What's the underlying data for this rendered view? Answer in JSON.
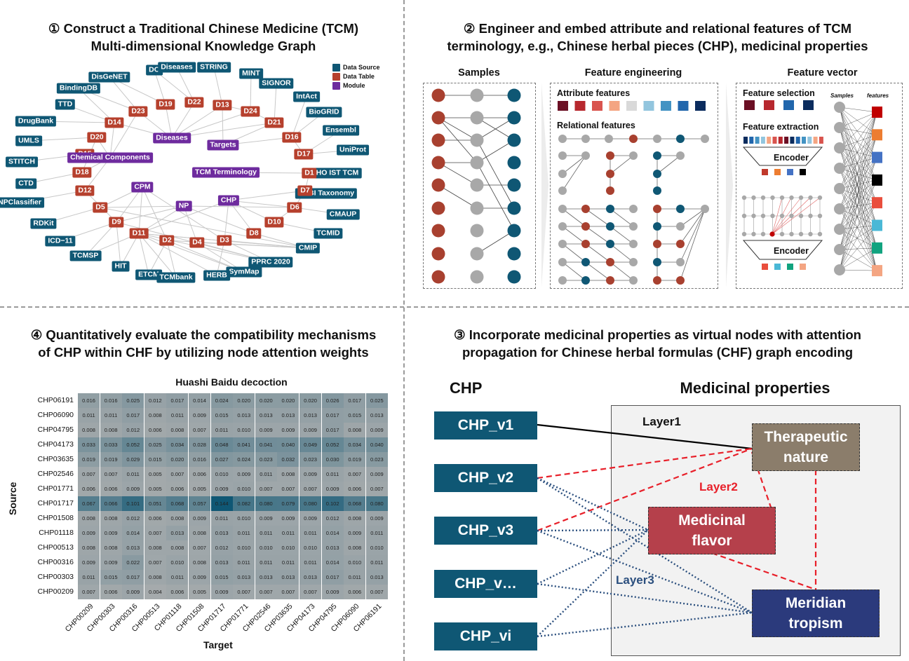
{
  "panel1": {
    "title_line1": "① Construct a Traditional Chinese Medicine (TCM)",
    "title_line2": "Multi-dimensional Knowledge Graph",
    "legend": [
      {
        "label": "Data Source",
        "color": "#0f5774"
      },
      {
        "label": "Data Table",
        "color": "#b6402d"
      },
      {
        "label": "Module",
        "color": "#6e2b9e"
      }
    ],
    "nodes": [
      {
        "id": "DO",
        "label": "DO",
        "type": "src"
      },
      {
        "id": "Diseases1",
        "label": "Diseases",
        "type": "src"
      },
      {
        "id": "STRING",
        "label": "STRING",
        "type": "src"
      },
      {
        "id": "DisGeNET",
        "label": "DisGeNET",
        "type": "src"
      },
      {
        "id": "MINT",
        "label": "MINT",
        "type": "src"
      },
      {
        "id": "SIGNOR",
        "label": "SIGNOR",
        "type": "src"
      },
      {
        "id": "BindingDB",
        "label": "BindingDB",
        "type": "src"
      },
      {
        "id": "IntAct",
        "label": "IntAct",
        "type": "src"
      },
      {
        "id": "TTD",
        "label": "TTD",
        "type": "src"
      },
      {
        "id": "BioGRID",
        "label": "BioGRID",
        "type": "src"
      },
      {
        "id": "DrugBank",
        "label": "DrugBank",
        "type": "src"
      },
      {
        "id": "Ensembl",
        "label": "Ensembl",
        "type": "src"
      },
      {
        "id": "UMLS",
        "label": "UMLS",
        "type": "src"
      },
      {
        "id": "UniProt",
        "label": "UniProt",
        "type": "src"
      },
      {
        "id": "STITCH",
        "label": "STITCH",
        "type": "src"
      },
      {
        "id": "WHO",
        "label": "WHO IST TCM",
        "type": "src"
      },
      {
        "id": "CTD",
        "label": "CTD",
        "type": "src"
      },
      {
        "id": "NCBI",
        "label": "NCBI Taxonomy",
        "type": "src"
      },
      {
        "id": "NPClassifier",
        "label": "NPClassifier",
        "type": "src"
      },
      {
        "id": "CMAUP",
        "label": "CMAUP",
        "type": "src"
      },
      {
        "id": "RDKit",
        "label": "RDKit",
        "type": "src"
      },
      {
        "id": "TCMID",
        "label": "TCMID",
        "type": "src"
      },
      {
        "id": "ICD11",
        "label": "ICD−11",
        "type": "src"
      },
      {
        "id": "CMIP",
        "label": "CMIP",
        "type": "src"
      },
      {
        "id": "TCMSP",
        "label": "TCMSP",
        "type": "src"
      },
      {
        "id": "PPRC",
        "label": "PPRC 2020",
        "type": "src"
      },
      {
        "id": "HIT",
        "label": "HIT",
        "type": "src"
      },
      {
        "id": "SymMap",
        "label": "SymMap",
        "type": "src"
      },
      {
        "id": "ETCM",
        "label": "ETCM",
        "type": "src"
      },
      {
        "id": "TCMbank",
        "label": "TCMbank",
        "type": "src"
      },
      {
        "id": "HERB",
        "label": "HERB",
        "type": "src"
      },
      {
        "id": "D23",
        "label": "D23",
        "type": "tbl"
      },
      {
        "id": "D19",
        "label": "D19",
        "type": "tbl"
      },
      {
        "id": "D22",
        "label": "D22",
        "type": "tbl"
      },
      {
        "id": "D13",
        "label": "D13",
        "type": "tbl"
      },
      {
        "id": "D24",
        "label": "D24",
        "type": "tbl"
      },
      {
        "id": "D14",
        "label": "D14",
        "type": "tbl"
      },
      {
        "id": "D21",
        "label": "D21",
        "type": "tbl"
      },
      {
        "id": "D20",
        "label": "D20",
        "type": "tbl"
      },
      {
        "id": "D16",
        "label": "D16",
        "type": "tbl"
      },
      {
        "id": "D15",
        "label": "D15",
        "type": "tbl"
      },
      {
        "id": "D17",
        "label": "D17",
        "type": "tbl"
      },
      {
        "id": "D18",
        "label": "D18",
        "type": "tbl"
      },
      {
        "id": "D1",
        "label": "D1",
        "type": "tbl"
      },
      {
        "id": "D12",
        "label": "D12",
        "type": "tbl"
      },
      {
        "id": "D7",
        "label": "D7",
        "type": "tbl"
      },
      {
        "id": "D5",
        "label": "D5",
        "type": "tbl"
      },
      {
        "id": "D6",
        "label": "D6",
        "type": "tbl"
      },
      {
        "id": "D9",
        "label": "D9",
        "type": "tbl"
      },
      {
        "id": "D10",
        "label": "D10",
        "type": "tbl"
      },
      {
        "id": "D11",
        "label": "D11",
        "type": "tbl"
      },
      {
        "id": "D2",
        "label": "D2",
        "type": "tbl"
      },
      {
        "id": "D4",
        "label": "D4",
        "type": "tbl"
      },
      {
        "id": "D3",
        "label": "D3",
        "type": "tbl"
      },
      {
        "id": "D8",
        "label": "D8",
        "type": "tbl"
      },
      {
        "id": "Diseases2",
        "label": "Diseases",
        "type": "mod"
      },
      {
        "id": "Targets",
        "label": "Targets",
        "type": "mod"
      },
      {
        "id": "Chem",
        "label": "Chemical Components",
        "type": "mod"
      },
      {
        "id": "TCMTerm",
        "label": "TCM Terminology",
        "type": "mod"
      },
      {
        "id": "CPM",
        "label": "CPM",
        "type": "mod"
      },
      {
        "id": "NP",
        "label": "NP",
        "type": "mod"
      },
      {
        "id": "CHP",
        "label": "CHP",
        "type": "mod"
      }
    ]
  },
  "panel2": {
    "title_line1": "② Engineer and embed attribute and relational features of TCM",
    "title_line2": "terminology, e.g., Chinese herbal pieces (CHP), medicinal properties",
    "samples_title": "Samples",
    "fe_title": "Feature engineering",
    "fv_title": "Feature vector",
    "attr_label": "Attribute features",
    "rel_label": "Relational features",
    "sel_label": "Feature selection",
    "ext_label": "Feature extraction",
    "encoder1": "Encoder",
    "encoder2": "Encoder",
    "fv_samples": "Samples",
    "fv_features": "features",
    "attr_colors": [
      "#6b0f24",
      "#b7282e",
      "#d9544e",
      "#f4a582",
      "#d9d9d9",
      "#92c5de",
      "#4393c3",
      "#2166ac",
      "#0b2c5e"
    ],
    "sel_colors": [
      "#6b0f24",
      "#b7282e",
      "#2166ac",
      "#0b2c5e"
    ],
    "feature_colors": [
      "#c00000",
      "#ed7d31",
      "#4472c4",
      "#000000",
      "#e94e3c",
      "#4ab8d6",
      "#11a37f",
      "#f4a582"
    ]
  },
  "panel3": {
    "title_line1": "③ Incorporate medicinal properties as virtual nodes with attention",
    "title_line2": "propagation for Chinese herbal formulas (CHF) graph encoding",
    "chp_header": "CHP",
    "mp_header": "Medicinal properties",
    "chp_nodes": [
      "CHP_v1",
      "CHP_v2",
      "CHP_v3",
      "CHP_v…",
      "CHP_vi"
    ],
    "props": {
      "therapeutic": {
        "line1": "Therapeutic",
        "line2": "nature",
        "color": "#8b7d6b"
      },
      "flavor": {
        "line1": "Medicinal",
        "line2": "flavor",
        "color": "#b5404b"
      },
      "meridian": {
        "line1": "Meridian",
        "line2": "tropism",
        "color": "#2b3a7c"
      }
    },
    "layer1": "Layer1",
    "layer2": "Layer2",
    "layer3": "Layer3",
    "layer2_color": "#e8202a",
    "layer3_color": "#2b4f7e"
  },
  "panel4": {
    "title_line1": "④ Quantitatively evaluate the compatibility mechanisms",
    "title_line2": "of CHP within CHF by utilizing node attention weights",
    "chart_data": {
      "type": "heatmap",
      "title": "Huashi Baidu decoction",
      "xlabel": "Target",
      "ylabel": "Source",
      "rows": [
        "CHP06191",
        "CHP06090",
        "CHP04795",
        "CHP04173",
        "CHP03635",
        "CHP02546",
        "CHP01771",
        "CHP01717",
        "CHP01508",
        "CHP01118",
        "CHP00513",
        "CHP00316",
        "CHP00303",
        "CHP00209"
      ],
      "cols": [
        "CHP00209",
        "CHP00303",
        "CHP00316",
        "CHP00513",
        "CHP01118",
        "CHP01508",
        "CHP01717",
        "CHP01771",
        "CHP02546",
        "CHP03635",
        "CHP04173",
        "CHP04795",
        "CHP06090",
        "CHP06191"
      ],
      "values": [
        [
          "0.016",
          "0.016",
          "0.025",
          "0.012",
          "0.017",
          "0.014",
          "0.024",
          "0.020",
          "0.020",
          "0.020",
          "0.020",
          "0.026",
          "0.017",
          "0.025"
        ],
        [
          "0.011",
          "0.011",
          "0.017",
          "0.008",
          "0.011",
          "0.009",
          "0.015",
          "0.013",
          "0.013",
          "0.013",
          "0.013",
          "0.017",
          "0.015",
          "0.013"
        ],
        [
          "0.008",
          "0.008",
          "0.012",
          "0.006",
          "0.008",
          "0.007",
          "0.011",
          "0.010",
          "0.009",
          "0.009",
          "0.009",
          "0.017",
          "0.008",
          "0.009"
        ],
        [
          "0.033",
          "0.033",
          "0.052",
          "0.025",
          "0.034",
          "0.028",
          "0.048",
          "0.041",
          "0.041",
          "0.040",
          "0.049",
          "0.052",
          "0.034",
          "0.040"
        ],
        [
          "0.019",
          "0.019",
          "0.029",
          "0.015",
          "0.020",
          "0.016",
          "0.027",
          "0.024",
          "0.023",
          "0.032",
          "0.023",
          "0.030",
          "0.019",
          "0.023"
        ],
        [
          "0.007",
          "0.007",
          "0.011",
          "0.005",
          "0.007",
          "0.006",
          "0.010",
          "0.009",
          "0.011",
          "0.008",
          "0.009",
          "0.011",
          "0.007",
          "0.009"
        ],
        [
          "0.006",
          "0.006",
          "0.009",
          "0.005",
          "0.006",
          "0.005",
          "0.009",
          "0.010",
          "0.007",
          "0.007",
          "0.007",
          "0.009",
          "0.006",
          "0.007"
        ],
        [
          "0.067",
          "0.066",
          "0.101",
          "0.051",
          "0.068",
          "0.057",
          "0.144",
          "0.082",
          "0.080",
          "0.079",
          "0.080",
          "0.102",
          "0.068",
          "0.080"
        ],
        [
          "0.008",
          "0.008",
          "0.012",
          "0.006",
          "0.008",
          "0.009",
          "0.011",
          "0.010",
          "0.009",
          "0.009",
          "0.009",
          "0.012",
          "0.008",
          "0.009"
        ],
        [
          "0.009",
          "0.009",
          "0.014",
          "0.007",
          "0.013",
          "0.008",
          "0.013",
          "0.011",
          "0.011",
          "0.011",
          "0.011",
          "0.014",
          "0.009",
          "0.011"
        ],
        [
          "0.008",
          "0.008",
          "0.013",
          "0.008",
          "0.008",
          "0.007",
          "0.012",
          "0.010",
          "0.010",
          "0.010",
          "0.010",
          "0.013",
          "0.008",
          "0.010"
        ],
        [
          "0.009",
          "0.009",
          "0.022",
          "0.007",
          "0.010",
          "0.008",
          "0.013",
          "0.011",
          "0.011",
          "0.011",
          "0.011",
          "0.014",
          "0.010",
          "0.011"
        ],
        [
          "0.011",
          "0.015",
          "0.017",
          "0.008",
          "0.011",
          "0.009",
          "0.015",
          "0.013",
          "0.013",
          "0.013",
          "0.013",
          "0.017",
          "0.011",
          "0.013"
        ],
        [
          "0.007",
          "0.006",
          "0.009",
          "0.004",
          "0.006",
          "0.005",
          "0.009",
          "0.007",
          "0.007",
          "0.007",
          "0.007",
          "0.009",
          "0.006",
          "0.007"
        ]
      ]
    }
  }
}
